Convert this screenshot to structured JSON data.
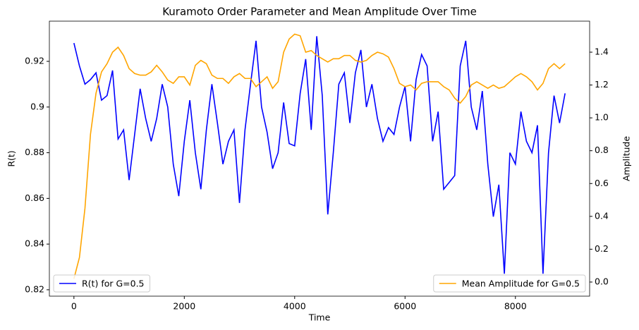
{
  "chart_data": {
    "type": "line",
    "title": "Kuramoto Order Parameter and Mean Amplitude Over Time",
    "xlabel": "Time",
    "ylabel": "R(t)",
    "y2label": "Amplitude",
    "x": [
      0,
      100,
      200,
      300,
      400,
      500,
      600,
      700,
      800,
      900,
      1000,
      1100,
      1200,
      1300,
      1400,
      1500,
      1600,
      1700,
      1800,
      1900,
      2000,
      2100,
      2200,
      2300,
      2400,
      2500,
      2600,
      2700,
      2800,
      2900,
      3000,
      3100,
      3200,
      3300,
      3400,
      3500,
      3600,
      3700,
      3800,
      3900,
      4000,
      4100,
      4200,
      4300,
      4400,
      4500,
      4600,
      4700,
      4800,
      4900,
      5000,
      5100,
      5200,
      5300,
      5400,
      5500,
      5600,
      5700,
      5800,
      5900,
      6000,
      6100,
      6200,
      6300,
      6400,
      6500,
      6600,
      6700,
      6800,
      6900,
      7000,
      7100,
      7200,
      7300,
      7400,
      7500,
      7600,
      7700,
      7800,
      7900,
      8000,
      8100,
      8200,
      8300,
      8400,
      8500,
      8600,
      8700,
      8800,
      8900
    ],
    "series": [
      {
        "name": "R(t) for G=0.5",
        "color": "#0000ff",
        "axis": "y",
        "legend": "lower left",
        "values": [
          0.928,
          0.918,
          0.91,
          0.912,
          0.915,
          0.903,
          0.905,
          0.916,
          0.886,
          0.89,
          0.868,
          0.888,
          0.908,
          0.895,
          0.885,
          0.895,
          0.91,
          0.9,
          0.875,
          0.861,
          0.885,
          0.903,
          0.88,
          0.864,
          0.89,
          0.91,
          0.893,
          0.875,
          0.885,
          0.89,
          0.858,
          0.89,
          0.91,
          0.929,
          0.9,
          0.889,
          0.873,
          0.88,
          0.902,
          0.884,
          0.883,
          0.906,
          0.921,
          0.89,
          0.931,
          0.905,
          0.853,
          0.88,
          0.91,
          0.915,
          0.893,
          0.915,
          0.925,
          0.9,
          0.91,
          0.895,
          0.885,
          0.891,
          0.888,
          0.9,
          0.909,
          0.885,
          0.912,
          0.923,
          0.918,
          0.885,
          0.898,
          0.864,
          0.867,
          0.87,
          0.918,
          0.929,
          0.9,
          0.89,
          0.907,
          0.875,
          0.852,
          0.866,
          0.827,
          0.88,
          0.875,
          0.898,
          0.885,
          0.88,
          0.892,
          0.827,
          0.88,
          0.905,
          0.893,
          0.906
        ]
      },
      {
        "name": "Mean Amplitude for G=0.5",
        "color": "#ffa500",
        "axis": "y2",
        "legend": "lower right",
        "values": [
          0.02,
          0.15,
          0.45,
          0.9,
          1.15,
          1.28,
          1.33,
          1.4,
          1.43,
          1.38,
          1.3,
          1.27,
          1.26,
          1.26,
          1.28,
          1.32,
          1.28,
          1.23,
          1.21,
          1.25,
          1.25,
          1.2,
          1.32,
          1.35,
          1.33,
          1.26,
          1.24,
          1.24,
          1.21,
          1.25,
          1.27,
          1.24,
          1.24,
          1.19,
          1.22,
          1.25,
          1.18,
          1.22,
          1.4,
          1.48,
          1.51,
          1.5,
          1.4,
          1.41,
          1.38,
          1.36,
          1.34,
          1.36,
          1.36,
          1.38,
          1.38,
          1.35,
          1.34,
          1.35,
          1.38,
          1.4,
          1.39,
          1.37,
          1.3,
          1.21,
          1.19,
          1.2,
          1.17,
          1.21,
          1.22,
          1.22,
          1.22,
          1.19,
          1.17,
          1.12,
          1.09,
          1.13,
          1.2,
          1.22,
          1.2,
          1.18,
          1.2,
          1.18,
          1.19,
          1.22,
          1.25,
          1.27,
          1.25,
          1.22,
          1.17,
          1.21,
          1.3,
          1.33,
          1.3,
          1.33
        ]
      }
    ],
    "xlim": [
      -445,
      9345
    ],
    "xticks": [
      0,
      2000,
      4000,
      6000,
      8000
    ],
    "ylim": [
      0.8172,
      0.9376
    ],
    "yticks": [
      0.82,
      0.84,
      0.86,
      0.88,
      0.9,
      0.92
    ],
    "y2lim": [
      -0.086,
      1.589
    ],
    "y2ticks": [
      {
        "value": 0,
        "label": "0.0"
      },
      0.2,
      0.4,
      0.6,
      0.8,
      {
        "value": 1,
        "label": "1.0"
      },
      1.2,
      1.4
    ]
  }
}
